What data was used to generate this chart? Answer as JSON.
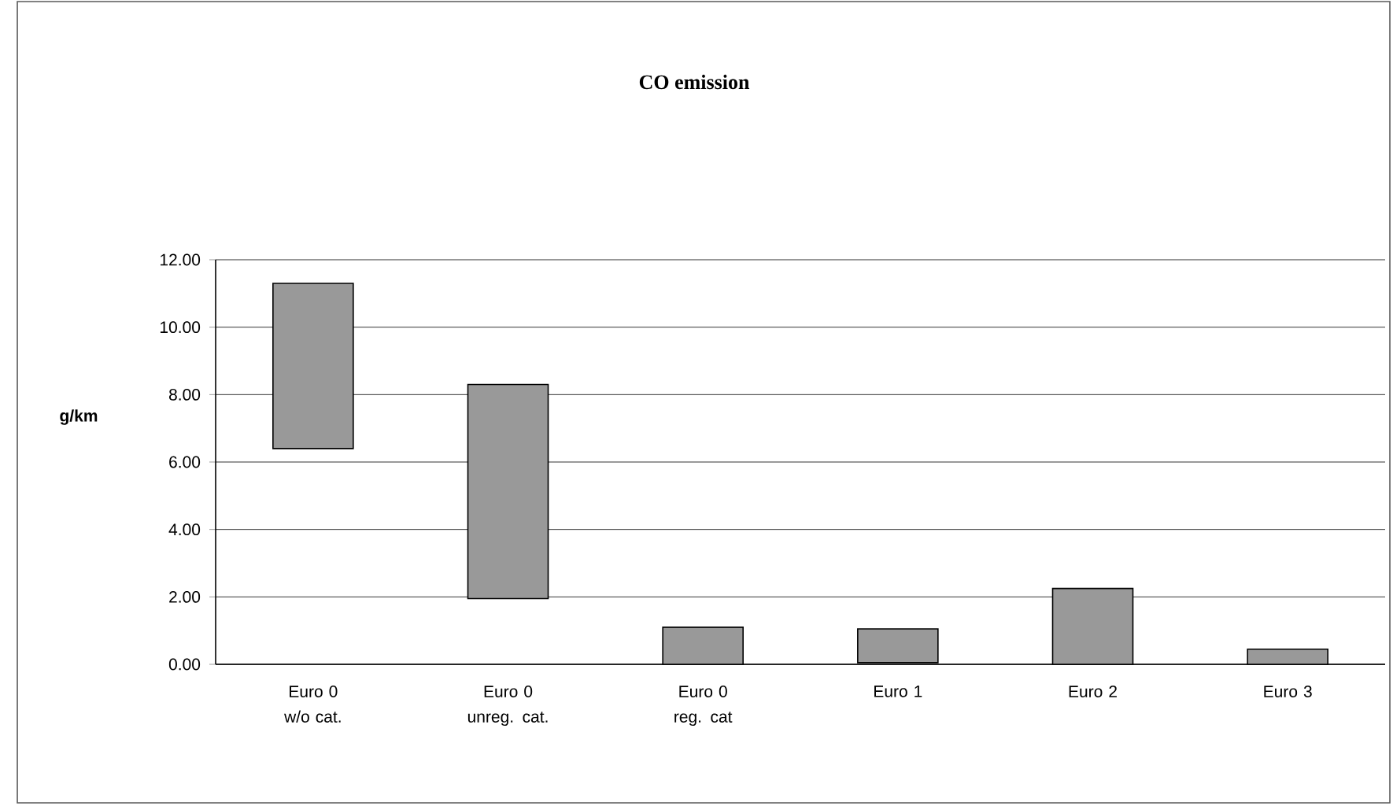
{
  "chart_data": {
    "type": "bar",
    "title": "CO emission",
    "ylabel": "g/km",
    "categories": [
      "Euro 0 w/o cat.",
      "Euro 0 unreg. cat.",
      "Euro 0 reg. cat",
      "Euro 1",
      "Euro 2",
      "Euro 3"
    ],
    "base": [
      6.4,
      1.95,
      0,
      0.05,
      0,
      0
    ],
    "values": [
      4.9,
      6.35,
      1.1,
      1.0,
      2.25,
      0.45
    ],
    "color": "#999999",
    "ylim": [
      0,
      12
    ],
    "yticks": [
      {
        "value": 0,
        "label": "0.00"
      },
      {
        "value": 2,
        "label": "2.00"
      },
      {
        "value": 4,
        "label": "4.00"
      },
      {
        "value": 6,
        "label": "6.00"
      },
      {
        "value": 8,
        "label": "8.00"
      },
      {
        "value": 10,
        "label": "10.00"
      },
      {
        "value": 12,
        "label": "12.00"
      }
    ],
    "grid": "y"
  }
}
